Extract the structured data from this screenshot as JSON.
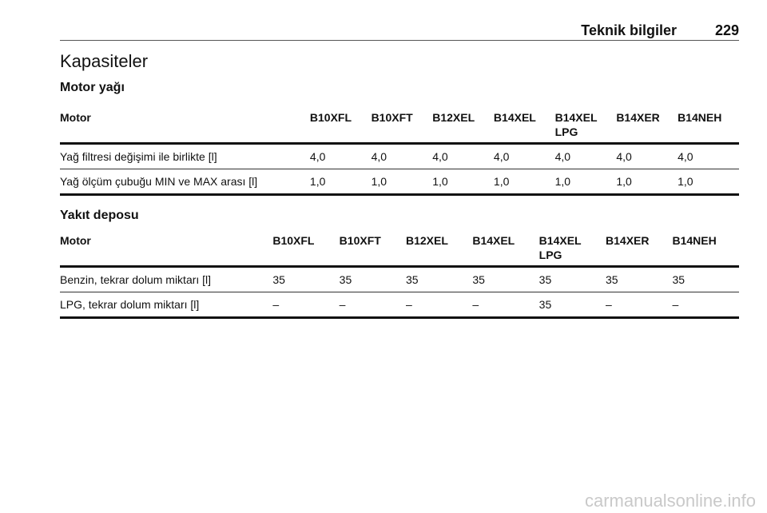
{
  "header": {
    "section": "Teknik bilgiler",
    "page_number": "229"
  },
  "title": "Kapasiteler",
  "oil": {
    "heading": "Motor yağı",
    "columns": [
      "Motor",
      "B10XFL",
      "B10XFT",
      "B12XEL",
      "B14XEL",
      "B14XEL LPG",
      "B14XER",
      "B14NEH"
    ],
    "rows": [
      [
        "Yağ filtresi değişimi ile birlikte [l]",
        "4,0",
        "4,0",
        "4,0",
        "4,0",
        "4,0",
        "4,0",
        "4,0"
      ],
      [
        "Yağ ölçüm çubuğu MIN ve MAX arası [l]",
        "1,0",
        "1,0",
        "1,0",
        "1,0",
        "1,0",
        "1,0",
        "1,0"
      ]
    ]
  },
  "fuel": {
    "heading": "Yakıt deposu",
    "columns": [
      "Motor",
      "B10XFL",
      "B10XFT",
      "B12XEL",
      "B14XEL",
      "B14XEL LPG",
      "B14XER",
      "B14NEH"
    ],
    "rows": [
      [
        "Benzin, tekrar dolum miktarı [l]",
        "35",
        "35",
        "35",
        "35",
        "35",
        "35",
        "35"
      ],
      [
        "LPG, tekrar dolum miktarı [l]",
        "–",
        "–",
        "–",
        "–",
        "35",
        "–",
        "–"
      ]
    ]
  },
  "watermark": "carmanualsonline.info"
}
